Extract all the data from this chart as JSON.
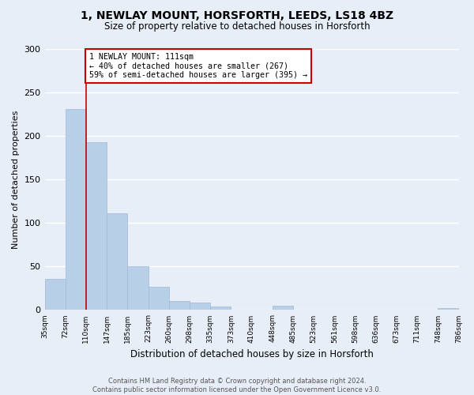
{
  "title_line1": "1, NEWLAY MOUNT, HORSFORTH, LEEDS, LS18 4BZ",
  "title_line2": "Size of property relative to detached houses in Horsforth",
  "xlabel": "Distribution of detached houses by size in Horsforth",
  "ylabel": "Number of detached properties",
  "bar_heights": [
    36,
    231,
    193,
    111,
    50,
    27,
    10,
    9,
    4,
    0,
    0,
    5,
    0,
    0,
    0,
    0,
    0,
    0,
    0,
    2
  ],
  "bar_color": "#b8cfe8",
  "bar_edgecolor": "#a0b8d8",
  "property_bar_index": 2,
  "annotation_text": "1 NEWLAY MOUNT: 111sqm\n← 40% of detached houses are smaller (267)\n59% of semi-detached houses are larger (395) →",
  "annotation_box_color": "white",
  "annotation_box_edgecolor": "#cc0000",
  "property_line_color": "#cc0000",
  "ylim": [
    0,
    300
  ],
  "yticks": [
    0,
    50,
    100,
    150,
    200,
    250,
    300
  ],
  "xtick_labels": [
    "35sqm",
    "72sqm",
    "110sqm",
    "147sqm",
    "185sqm",
    "223sqm",
    "260sqm",
    "298sqm",
    "335sqm",
    "373sqm",
    "410sqm",
    "448sqm",
    "485sqm",
    "523sqm",
    "561sqm",
    "598sqm",
    "636sqm",
    "673sqm",
    "711sqm",
    "748sqm",
    "786sqm"
  ],
  "footer_line1": "Contains HM Land Registry data © Crown copyright and database right 2024.",
  "footer_line2": "Contains public sector information licensed under the Open Government Licence v3.0.",
  "bg_color": "#e8eef8",
  "plot_bg_color": "#e8eef8",
  "grid_color": "white",
  "figsize": [
    6.0,
    5.0
  ],
  "dpi": 100
}
